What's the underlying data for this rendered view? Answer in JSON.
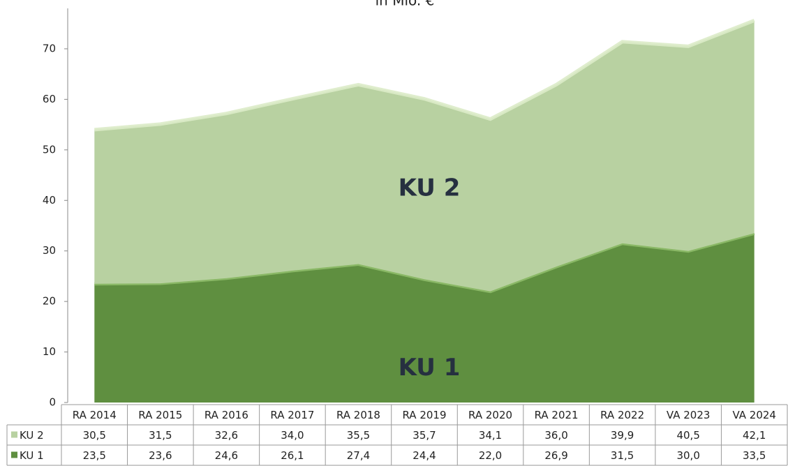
{
  "chart_data": {
    "type": "area",
    "title": "in Mio. €",
    "categories": [
      "RA 2014",
      "RA 2015",
      "RA 2016",
      "RA 2017",
      "RA 2018",
      "RA 2019",
      "RA 2020",
      "RA 2021",
      "RA 2022",
      "VA 2023",
      "VA 2024"
    ],
    "series": [
      {
        "name": "KU 1",
        "color": "#5f8f40",
        "values": [
          23.5,
          23.6,
          24.6,
          26.1,
          27.4,
          24.4,
          22.0,
          26.9,
          31.5,
          30.0,
          33.5
        ],
        "value_labels": [
          "23,5",
          "23,6",
          "24,6",
          "26,1",
          "27,4",
          "24,4",
          "22,0",
          "26,9",
          "31,5",
          "30,0",
          "33,5"
        ]
      },
      {
        "name": "KU 2",
        "color": "#b8d1a1",
        "values": [
          30.5,
          31.5,
          32.6,
          34.0,
          35.5,
          35.7,
          34.1,
          36.0,
          39.9,
          40.5,
          42.1
        ],
        "value_labels": [
          "30,5",
          "31,5",
          "32,6",
          "34,0",
          "35,5",
          "35,7",
          "34,1",
          "36,0",
          "39,9",
          "40,5",
          "42,1"
        ]
      }
    ],
    "stacked": true,
    "ylim": [
      0,
      78
    ],
    "yticks": [
      0,
      10,
      20,
      30,
      40,
      50,
      60,
      70
    ]
  }
}
